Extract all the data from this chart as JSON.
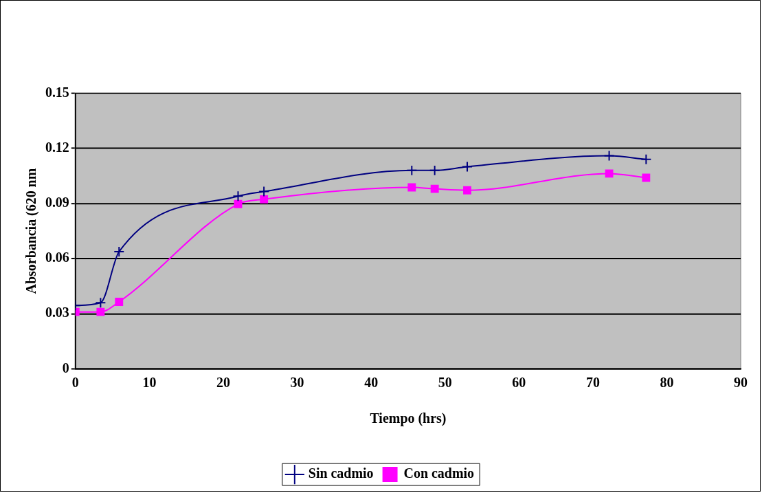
{
  "chart_data": {
    "type": "line",
    "xlabel": "Tiempo (hrs)",
    "ylabel": "Absorbancia (620 nm",
    "xlim": [
      0,
      90
    ],
    "xticks": [
      0,
      10,
      20,
      30,
      40,
      50,
      60,
      70,
      80,
      90
    ],
    "ylim": [
      0,
      0.15
    ],
    "yticks": [
      0,
      0.03,
      0.06,
      0.09,
      0.12,
      0.15
    ],
    "grid": "y",
    "legend": "bottom",
    "x": [
      0,
      3.4,
      5.9,
      22,
      25.5,
      45.5,
      48.6,
      53,
      72.2,
      77.2
    ],
    "series": [
      {
        "name": "Sin cadmio",
        "color": "#000080",
        "marker": "cross",
        "values": [
          0.0345,
          0.036,
          0.0638,
          0.094,
          0.0965,
          0.108,
          0.108,
          0.11,
          0.116,
          0.114
        ]
      },
      {
        "name": "Con cadmio",
        "color": "#ff00ff",
        "marker": "square",
        "values": [
          0.031,
          0.031,
          0.0365,
          0.0897,
          0.0923,
          0.0988,
          0.098,
          0.0972,
          0.1063,
          0.104
        ]
      }
    ]
  }
}
